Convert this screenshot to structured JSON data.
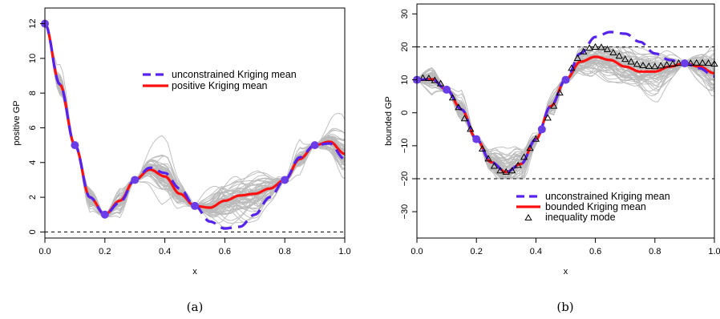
{
  "figure": {
    "captions": [
      "(a)",
      "(b)"
    ]
  },
  "chart_data": [
    {
      "type": "line",
      "title": "",
      "xlabel": "x",
      "ylabel": "positive GP",
      "xlim": [
        0,
        1
      ],
      "ylim": [
        0,
        12.5
      ],
      "x_ticks": [
        "0.0",
        "0.2",
        "0.4",
        "0.6",
        "0.8",
        "1.0"
      ],
      "y_ticks": [
        "0",
        "2",
        "4",
        "6",
        "8",
        "10",
        "12"
      ],
      "legend_position": "top-right",
      "legend": [
        "unconstrained Kriging mean",
        "positive Kriging mean"
      ],
      "reference_line": {
        "y": 0,
        "style": "dashed"
      },
      "colors": {
        "unconstrained": "#5522ee",
        "constrained": "#ff1010",
        "samples": "#bbbbbb",
        "points": "#6a3de8"
      },
      "observations": {
        "x": [
          0.0,
          0.1,
          0.2,
          0.3,
          0.5,
          0.8,
          0.9
        ],
        "y": [
          12,
          5,
          1,
          3,
          1.5,
          3,
          5
        ]
      },
      "series": [
        {
          "name": "unconstrained Kriging mean",
          "style": "dashed",
          "x": [
            0.0,
            0.05,
            0.1,
            0.15,
            0.2,
            0.25,
            0.3,
            0.35,
            0.4,
            0.45,
            0.5,
            0.55,
            0.6,
            0.65,
            0.7,
            0.75,
            0.8,
            0.85,
            0.9,
            0.95,
            1.0
          ],
          "y": [
            12,
            8.5,
            5,
            2,
            1,
            1.7,
            3,
            3.7,
            3.4,
            2.5,
            1.5,
            0.6,
            0.2,
            0.3,
            1.0,
            2.0,
            3,
            4.3,
            5,
            5.1,
            4.2
          ]
        },
        {
          "name": "positive Kriging mean",
          "style": "solid",
          "x": [
            0.0,
            0.05,
            0.1,
            0.15,
            0.2,
            0.25,
            0.3,
            0.35,
            0.4,
            0.45,
            0.5,
            0.55,
            0.6,
            0.65,
            0.7,
            0.75,
            0.8,
            0.85,
            0.9,
            0.95,
            1.0
          ],
          "y": [
            12,
            8.5,
            5,
            2,
            1,
            1.8,
            3,
            3.6,
            3.2,
            2.2,
            1.5,
            1.4,
            1.8,
            2.1,
            2.2,
            2.5,
            3,
            4.2,
            5,
            5.2,
            4.5
          ]
        }
      ],
      "samples": {
        "count": 60,
        "description": "conditional sample paths",
        "x_range": [
          0,
          1
        ]
      }
    },
    {
      "type": "line",
      "title": "",
      "xlabel": "x",
      "ylabel": "bounded GP",
      "xlim": [
        0,
        1
      ],
      "ylim": [
        -38,
        33
      ],
      "x_ticks": [
        "0.0",
        "0.2",
        "0.4",
        "0.6",
        "0.8",
        "1.0"
      ],
      "y_ticks": [
        "−30",
        "−20",
        "−10",
        "0",
        "10",
        "20",
        "30"
      ],
      "legend_position": "bottom-right",
      "legend": [
        "unconstrained Kriging mean",
        "bounded Kriging mean",
        "inequality mode"
      ],
      "reference_lines": [
        {
          "y": 20,
          "style": "dashed"
        },
        {
          "y": -20,
          "style": "dashed"
        }
      ],
      "colors": {
        "unconstrained": "#5522ee",
        "constrained": "#ff1010",
        "samples": "#bbbbbb",
        "points": "#6a3de8",
        "mode": "#000000"
      },
      "observations": {
        "x": [
          0.0,
          0.1,
          0.2,
          0.42,
          0.5,
          0.9
        ],
        "y": [
          10,
          7,
          -8,
          -5,
          10,
          15
        ]
      },
      "series": [
        {
          "name": "unconstrained Kriging mean",
          "style": "dashed",
          "x": [
            0.0,
            0.05,
            0.1,
            0.15,
            0.2,
            0.25,
            0.3,
            0.35,
            0.4,
            0.45,
            0.5,
            0.55,
            0.6,
            0.65,
            0.7,
            0.75,
            0.8,
            0.85,
            0.9,
            0.95,
            1.0
          ],
          "y": [
            10,
            10.2,
            7,
            1,
            -8,
            -15,
            -18,
            -15.5,
            -8,
            2,
            10,
            18,
            23,
            24.5,
            24,
            21.5,
            18,
            16,
            15,
            13.5,
            11
          ]
        },
        {
          "name": "bounded Kriging mean",
          "style": "solid",
          "x": [
            0.0,
            0.05,
            0.1,
            0.15,
            0.2,
            0.25,
            0.3,
            0.35,
            0.4,
            0.45,
            0.5,
            0.55,
            0.6,
            0.65,
            0.7,
            0.75,
            0.8,
            0.85,
            0.9,
            0.95,
            1.0
          ],
          "y": [
            10,
            10.2,
            7,
            1,
            -8,
            -15,
            -18,
            -15.5,
            -8,
            2,
            10,
            15.5,
            17,
            16,
            14,
            12.5,
            12.5,
            14,
            15,
            14,
            12
          ]
        },
        {
          "name": "inequality mode",
          "style": "markers",
          "x": [
            0.0,
            0.02,
            0.04,
            0.06,
            0.08,
            0.1,
            0.12,
            0.14,
            0.16,
            0.18,
            0.2,
            0.22,
            0.24,
            0.26,
            0.28,
            0.3,
            0.32,
            0.34,
            0.36,
            0.38,
            0.4,
            0.42,
            0.44,
            0.46,
            0.48,
            0.5,
            0.52,
            0.54,
            0.56,
            0.58,
            0.6,
            0.62,
            0.64,
            0.66,
            0.68,
            0.7,
            0.72,
            0.74,
            0.76,
            0.78,
            0.8,
            0.82,
            0.84,
            0.86,
            0.88,
            0.9,
            0.92,
            0.94,
            0.96,
            0.98,
            1.0
          ],
          "y": [
            10,
            10.5,
            10.4,
            9.8,
            8.8,
            7,
            4.5,
            1.6,
            -1.8,
            -5,
            -8,
            -11,
            -14,
            -16.2,
            -17.6,
            -18,
            -17.6,
            -16,
            -13.5,
            -10.8,
            -8,
            -5,
            -1.6,
            2,
            6,
            10,
            13.5,
            16.5,
            18.5,
            19.6,
            19.9,
            19.8,
            19.2,
            18.2,
            17.2,
            16.2,
            15.4,
            14.7,
            14.3,
            14.1,
            14,
            14.2,
            14.5,
            14.8,
            15,
            15,
            15,
            15.1,
            15.1,
            15,
            14.8
          ]
        }
      ],
      "samples": {
        "count": 60,
        "description": "conditional sample paths",
        "x_range": [
          0,
          1
        ]
      }
    }
  ]
}
